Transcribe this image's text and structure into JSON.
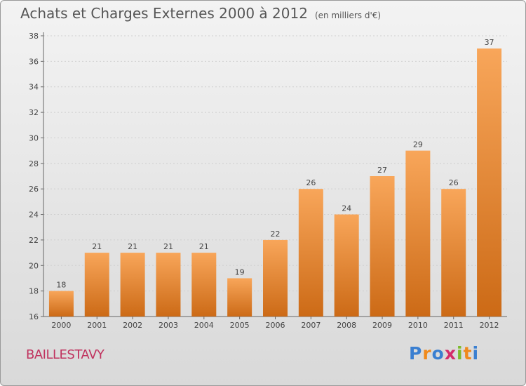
{
  "header": {
    "title": "Achats et Charges Externes 2000 à 2012",
    "subtitle": "(en milliers d'€)"
  },
  "footer": {
    "commune": "BAILLESTAVY",
    "brand": "Proxiti",
    "brand_colors": [
      "#3a7fd1",
      "#f08a1c",
      "#3a7fd1",
      "#d42c6a",
      "#7dbb2b",
      "#f08a1c",
      "#3a7fd1"
    ]
  },
  "colors": {
    "bar_light": "#f8a65a",
    "bar_dark": "#cc6a16",
    "axis": "#666666",
    "grid": "#cfcfcf"
  },
  "chart_data": {
    "type": "bar",
    "title": "Achats et Charges Externes 2000 à 2012",
    "subtitle": "(en milliers d'€)",
    "xlabel": "",
    "ylabel": "",
    "categories": [
      "2000",
      "2001",
      "2002",
      "2003",
      "2004",
      "2005",
      "2006",
      "2007",
      "2008",
      "2009",
      "2010",
      "2011",
      "2012"
    ],
    "values": [
      18,
      21,
      21,
      21,
      21,
      19,
      22,
      26,
      24,
      27,
      29,
      26,
      37
    ],
    "ylim": [
      16,
      38
    ],
    "yticks": [
      16,
      18,
      20,
      22,
      24,
      26,
      28,
      30,
      32,
      34,
      36,
      38
    ],
    "grid": true,
    "legend": "none"
  }
}
